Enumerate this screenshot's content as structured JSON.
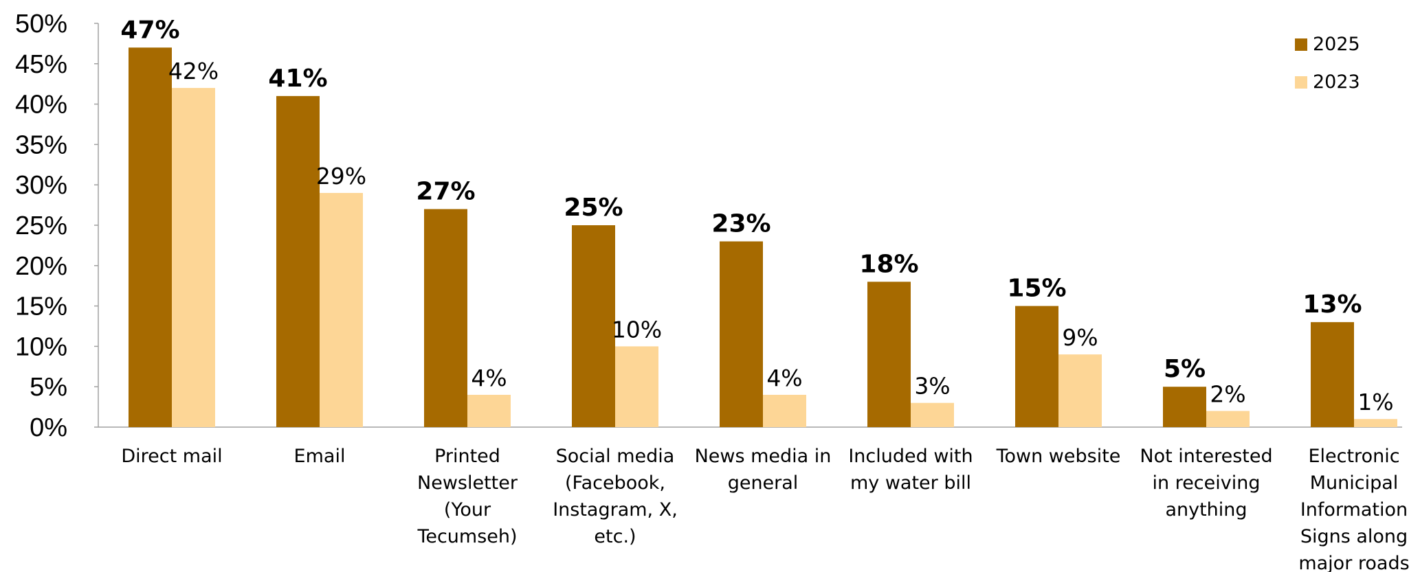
{
  "chart_data": {
    "type": "bar",
    "categories": [
      [
        "Direct mail"
      ],
      [
        "Email"
      ],
      [
        "Printed",
        "Newsletter",
        "(Your",
        "Tecumseh)"
      ],
      [
        "Social media",
        "(Facebook,",
        "Instagram, X,",
        "etc.)"
      ],
      [
        "News media in",
        "general"
      ],
      [
        "Included with",
        "my water bill"
      ],
      [
        "Town website"
      ],
      [
        "Not interested",
        "in receiving",
        "anything"
      ],
      [
        "Electronic",
        "Municipal",
        "Information",
        "Signs along",
        "major roads"
      ]
    ],
    "series": [
      {
        "name": "2025",
        "color": "#A66A00",
        "values": [
          47,
          41,
          27,
          25,
          23,
          18,
          15,
          5,
          13
        ],
        "labels": [
          "47%",
          "41%",
          "27%",
          "25%",
          "23%",
          "18%",
          "15%",
          "5%",
          "13%"
        ]
      },
      {
        "name": "2023",
        "color": "#FDD696",
        "values": [
          42,
          29,
          4,
          10,
          4,
          3,
          9,
          2,
          1
        ],
        "labels": [
          "42%",
          "29%",
          "4%",
          "10%",
          "4%",
          "3%",
          "9%",
          "2%",
          "1%"
        ]
      }
    ],
    "y_ticks": [
      "0%",
      "5%",
      "10%",
      "15%",
      "20%",
      "25%",
      "30%",
      "35%",
      "40%",
      "45%",
      "50%"
    ],
    "ylim": [
      0,
      50
    ],
    "legend_position": "top-right",
    "grid": false
  }
}
